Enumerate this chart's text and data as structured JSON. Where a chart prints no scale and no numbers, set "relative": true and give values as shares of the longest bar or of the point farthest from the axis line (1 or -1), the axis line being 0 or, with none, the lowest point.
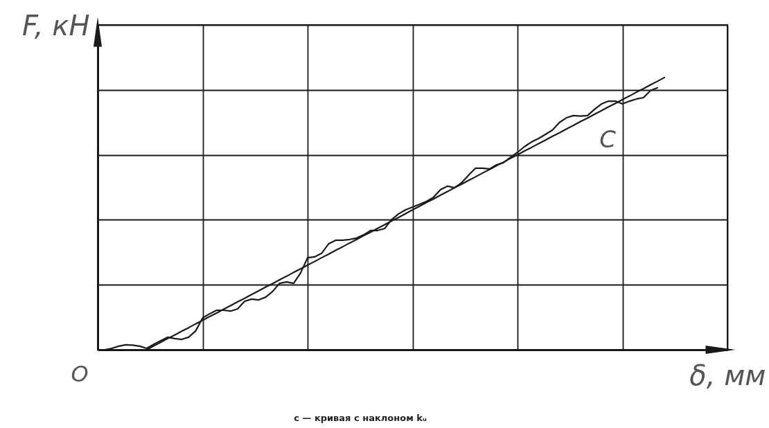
{
  "chart_data": {
    "type": "line",
    "relative": true,
    "grid": true,
    "xlabel": "δ, мм",
    "ylabel": "F, кН",
    "annotations": [
      "O",
      "c — кривая с наклоном kᵤ"
    ],
    "categories": [
      null,
      null,
      null,
      null,
      null,
      null,
      null,
      null,
      null,
      null,
      null,
      null,
      null,
      null,
      null,
      null,
      null,
      null,
      null,
      null,
      null,
      null,
      null,
      null,
      null,
      null,
      null,
      null,
      null,
      null,
      null,
      null,
      null,
      null,
      null,
      null,
      null,
      null,
      null,
      null,
      null,
      null,
      null,
      null,
      null,
      null,
      null,
      null,
      null,
      null,
      null,
      null,
      null,
      null,
      null,
      null,
      null,
      null,
      null,
      null,
      null,
      null,
      null,
      null,
      null,
      null,
      null,
      null,
      null,
      null,
      null,
      null,
      null,
      null,
      null,
      null,
      null,
      null,
      null,
      null,
      null,
      null,
      null,
      null,
      null,
      null,
      null,
      null,
      null,
      null,
      null
    ],
    "series": [
      {
        "name": "C",
        "color": "#1a1a1a",
        "values": [
          0,
          0,
          0.005,
          0.013,
          0.018,
          0.017,
          0.013,
          0.005,
          0.02,
          0.033,
          0.046,
          0.041,
          0.038,
          0.046,
          0.069,
          0.117,
          0.132,
          0.145,
          0.145,
          0.142,
          0.15,
          0.178,
          0.186,
          0.183,
          0.193,
          0.214,
          0.244,
          0.249,
          0.244,
          0.282,
          0.338,
          0.341,
          0.354,
          0.389,
          0.402,
          0.402,
          0.405,
          0.41,
          0.422,
          0.438,
          0.438,
          0.445,
          0.478,
          0.499,
          0.514,
          0.524,
          0.534,
          0.545,
          0.56,
          0.588,
          0.601,
          0.595,
          0.613,
          0.641,
          0.667,
          0.667,
          0.664,
          0.679,
          0.687,
          0.707,
          0.725,
          0.746,
          0.763,
          0.776,
          0.791,
          0.807,
          0.835,
          0.852,
          0.86,
          0.858,
          0.86,
          0.883,
          0.903,
          0.913,
          0.913,
          0.903,
          0.913,
          0.921,
          0.926,
          0.952,
          0.962,
          null,
          null,
          null,
          null,
          null,
          null,
          null,
          null,
          null,
          null
        ]
      },
      {
        "color": "#1a1a1a",
        "values": [
          null,
          null,
          null,
          null,
          null,
          null,
          null,
          0,
          0.014,
          0.027,
          0.041,
          0.054,
          0.068,
          0.081,
          0.095,
          0.108,
          0.122,
          0.135,
          0.149,
          0.162,
          0.176,
          0.189,
          0.203,
          0.216,
          0.23,
          0.243,
          0.257,
          0.27,
          0.284,
          0.297,
          0.311,
          0.324,
          0.338,
          0.351,
          0.365,
          0.378,
          0.392,
          0.405,
          0.419,
          0.432,
          0.446,
          0.459,
          0.473,
          0.486,
          0.5,
          0.514,
          0.527,
          0.541,
          0.554,
          0.568,
          0.581,
          0.595,
          0.608,
          0.622,
          0.635,
          0.649,
          0.662,
          0.676,
          0.689,
          0.703,
          0.716,
          0.73,
          0.743,
          0.757,
          0.77,
          0.784,
          0.797,
          0.811,
          0.824,
          0.838,
          0.851,
          0.865,
          0.878,
          0.892,
          0.905,
          0.919,
          0.932,
          0.946,
          0.959,
          0.973,
          0.986,
          1,
          null,
          null,
          null,
          null,
          null,
          null,
          null,
          null,
          null
        ]
      }
    ]
  }
}
